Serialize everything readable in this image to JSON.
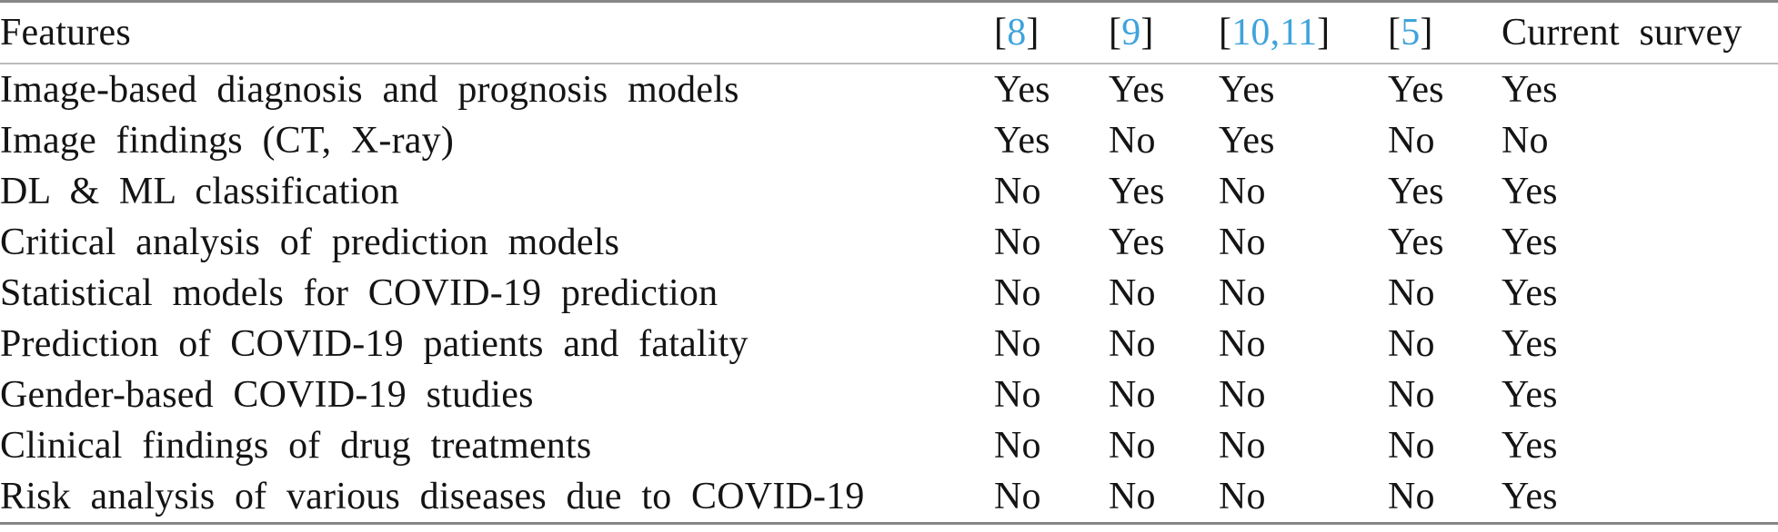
{
  "accent_blue": "#3FA3DC",
  "rules": {
    "outer_color": "#868686",
    "header_separator_color": "#bcbcbc"
  },
  "header": {
    "features_label": "Features",
    "ref_columns": [
      {
        "name": "ref-8",
        "open": "[",
        "numbers": [
          "8"
        ],
        "separator": ",",
        "close": "]"
      },
      {
        "name": "ref-9",
        "open": "[",
        "numbers": [
          "9"
        ],
        "separator": ",",
        "close": "]"
      },
      {
        "name": "ref-10-11",
        "open": "[",
        "numbers": [
          "10",
          "11"
        ],
        "separator": ",",
        "close": "]"
      },
      {
        "name": "ref-5",
        "open": "[",
        "numbers": [
          "5"
        ],
        "separator": ",",
        "close": "]"
      }
    ],
    "current_survey_label": "Current survey"
  },
  "rows": [
    {
      "feature": "Image-based diagnosis and prognosis models",
      "values": [
        "Yes",
        "Yes",
        "Yes",
        "Yes",
        "Yes"
      ]
    },
    {
      "feature": "Image findings (CT, X-ray)",
      "values": [
        "Yes",
        "No",
        "Yes",
        "No",
        "No"
      ]
    },
    {
      "feature": "DL & ML classification",
      "values": [
        "No",
        "Yes",
        "No",
        "Yes",
        "Yes"
      ]
    },
    {
      "feature": "Critical analysis of prediction models",
      "values": [
        "No",
        "Yes",
        "No",
        "Yes",
        "Yes"
      ]
    },
    {
      "feature": "Statistical models for COVID-19 prediction",
      "values": [
        "No",
        "No",
        "No",
        "No",
        "Yes"
      ]
    },
    {
      "feature": "Prediction of COVID-19 patients and fatality",
      "values": [
        "No",
        "No",
        "No",
        "No",
        "Yes"
      ]
    },
    {
      "feature": "Gender-based COVID-19 studies",
      "values": [
        "No",
        "No",
        "No",
        "No",
        "Yes"
      ]
    },
    {
      "feature": "Clinical findings of drug treatments",
      "values": [
        "No",
        "No",
        "No",
        "No",
        "Yes"
      ]
    },
    {
      "feature": "Risk analysis of various diseases due to COVID-19",
      "values": [
        "No",
        "No",
        "No",
        "No",
        "Yes"
      ]
    }
  ]
}
